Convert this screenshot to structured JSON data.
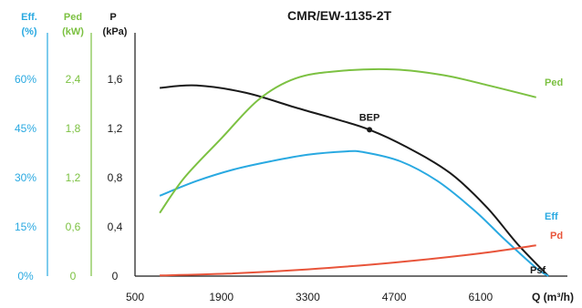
{
  "chart_data": {
    "type": "line",
    "title": "CMR/EW-1135-2T",
    "colors": {
      "eff": "#29a9e1",
      "ped": "#7cc142",
      "p": "#1a1a1a",
      "pd": "#e8543a",
      "psf": "#1a1a1a"
    },
    "x_axis": {
      "label": "Q (m³/h)",
      "ticks": [
        "500",
        "1900",
        "3300",
        "4700",
        "6100"
      ],
      "range": [
        500,
        7300
      ]
    },
    "axes": {
      "eff": {
        "label": "Eff.",
        "unit": "(%)",
        "ticks": [
          "0%",
          "15%",
          "30%",
          "45%",
          "60%"
        ],
        "range": [
          0,
          60
        ]
      },
      "ped": {
        "label": "Ped",
        "unit": "(kW)",
        "ticks": [
          "0",
          "0,6",
          "1,2",
          "1,8",
          "2,4"
        ],
        "range": [
          0,
          2.4
        ]
      },
      "p": {
        "label": "P",
        "unit": "(kPa)",
        "ticks": [
          "0",
          "0,4",
          "0,8",
          "1,2",
          "1,6"
        ],
        "range": [
          0,
          1.6
        ]
      }
    },
    "series": [
      {
        "key": "psf",
        "name": "Psf",
        "axis": "p",
        "points": [
          [
            900,
            1.53
          ],
          [
            1500,
            1.55
          ],
          [
            2300,
            1.49
          ],
          [
            3100,
            1.37
          ],
          [
            3800,
            1.27
          ],
          [
            4300,
            1.19
          ],
          [
            4900,
            1.05
          ],
          [
            5600,
            0.84
          ],
          [
            6200,
            0.56
          ],
          [
            6700,
            0.26
          ],
          [
            7200,
            0.0
          ]
        ]
      },
      {
        "key": "eff",
        "name": "Eff",
        "axis": "eff",
        "points": [
          [
            900,
            24.5
          ],
          [
            1500,
            29
          ],
          [
            2100,
            32.5
          ],
          [
            2700,
            35
          ],
          [
            3300,
            37
          ],
          [
            3900,
            38
          ],
          [
            4200,
            37.8
          ],
          [
            4800,
            35
          ],
          [
            5400,
            29
          ],
          [
            6000,
            20
          ],
          [
            6500,
            11
          ],
          [
            7000,
            2.5
          ],
          [
            7200,
            0
          ]
        ]
      },
      {
        "key": "ped",
        "name": "Ped",
        "axis": "ped",
        "points": [
          [
            900,
            0.77
          ],
          [
            1300,
            1.2
          ],
          [
            1900,
            1.68
          ],
          [
            2500,
            2.15
          ],
          [
            3100,
            2.41
          ],
          [
            3800,
            2.5
          ],
          [
            4700,
            2.52
          ],
          [
            5500,
            2.45
          ],
          [
            6200,
            2.33
          ],
          [
            7000,
            2.18
          ]
        ]
      },
      {
        "key": "pd",
        "name": "Pd",
        "axis": "p",
        "points": [
          [
            900,
            0.005
          ],
          [
            2000,
            0.02
          ],
          [
            3300,
            0.055
          ],
          [
            4700,
            0.11
          ],
          [
            6100,
            0.185
          ],
          [
            7000,
            0.25
          ]
        ]
      }
    ],
    "annotations": [
      {
        "text": "BEP",
        "x": 4300,
        "y": 1.19,
        "axis": "p"
      }
    ]
  }
}
